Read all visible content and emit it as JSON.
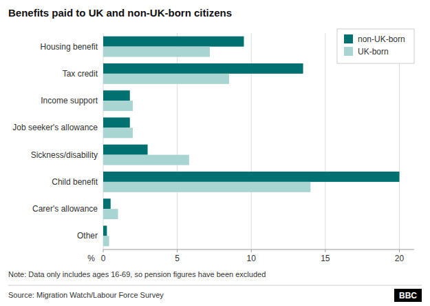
{
  "chart_data": {
    "type": "bar",
    "orientation": "horizontal",
    "title": "Benefits paid to UK and non-UK-born citizens",
    "categories": [
      "Housing benefit",
      "Tax credit",
      "Income support",
      "Job seeker's allowance",
      "Sickness/disability",
      "Child benefit",
      "Carer's allowance",
      "Other"
    ],
    "series": [
      {
        "name": "non-UK-born",
        "color": "#007070",
        "values": [
          9.5,
          13.5,
          1.8,
          1.8,
          3.0,
          20.0,
          0.5,
          0.25
        ]
      },
      {
        "name": "UK-born",
        "color": "#a8d5d1",
        "values": [
          7.2,
          8.5,
          2.0,
          2.0,
          5.8,
          14.0,
          1.0,
          0.4
        ]
      }
    ],
    "x_label": "%",
    "xlim": [
      0,
      21
    ],
    "xticks": [
      0,
      5,
      10,
      15,
      20
    ],
    "grid": true,
    "legend": "upper right",
    "note": "Note: Data only includes ages 16-69, so pension figures have been excluded",
    "source": "Source: Migration Watch/Labour Force Survey",
    "logo": "BBC"
  }
}
